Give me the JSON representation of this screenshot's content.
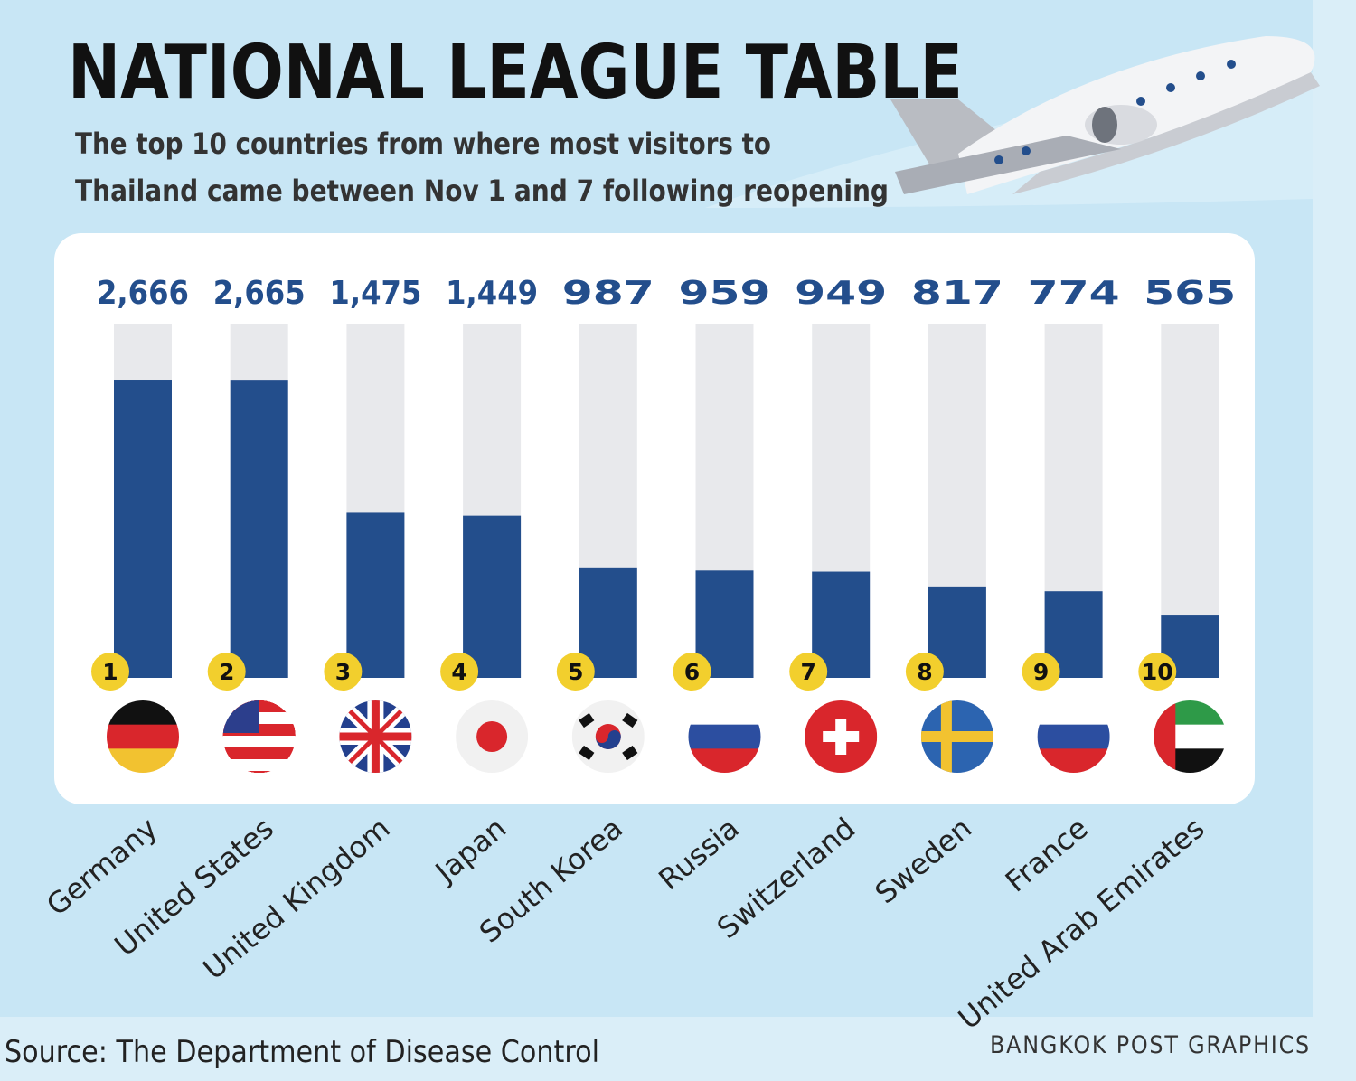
{
  "chart_data": {
    "type": "bar",
    "title": "NATIONAL LEAGUE TABLE",
    "subtitle": [
      "The top 10 countries from where most visitors to",
      "Thailand came between Nov 1 and 7 following reopening"
    ],
    "categories": [
      "Germany",
      "United States",
      "United Kingdom",
      "Japan",
      "South Korea",
      "Russia",
      "Switzerland",
      "Sweden",
      "France",
      "United Arab Emirates"
    ],
    "values": [
      2666,
      2665,
      1475,
      1449,
      987,
      959,
      949,
      817,
      774,
      565
    ],
    "value_labels": [
      "2,666",
      "2,665",
      "1,475",
      "1,449",
      "987",
      "959",
      "949",
      "817",
      "774",
      "565"
    ],
    "ranks": [
      1,
      2,
      3,
      4,
      5,
      6,
      7,
      8,
      9,
      10
    ],
    "color": "#234e8c",
    "ylim": [
      0,
      3167
    ],
    "source": "Source: The Department of Disease Control",
    "credit": "BANGKOK POST GRAPHICS"
  }
}
